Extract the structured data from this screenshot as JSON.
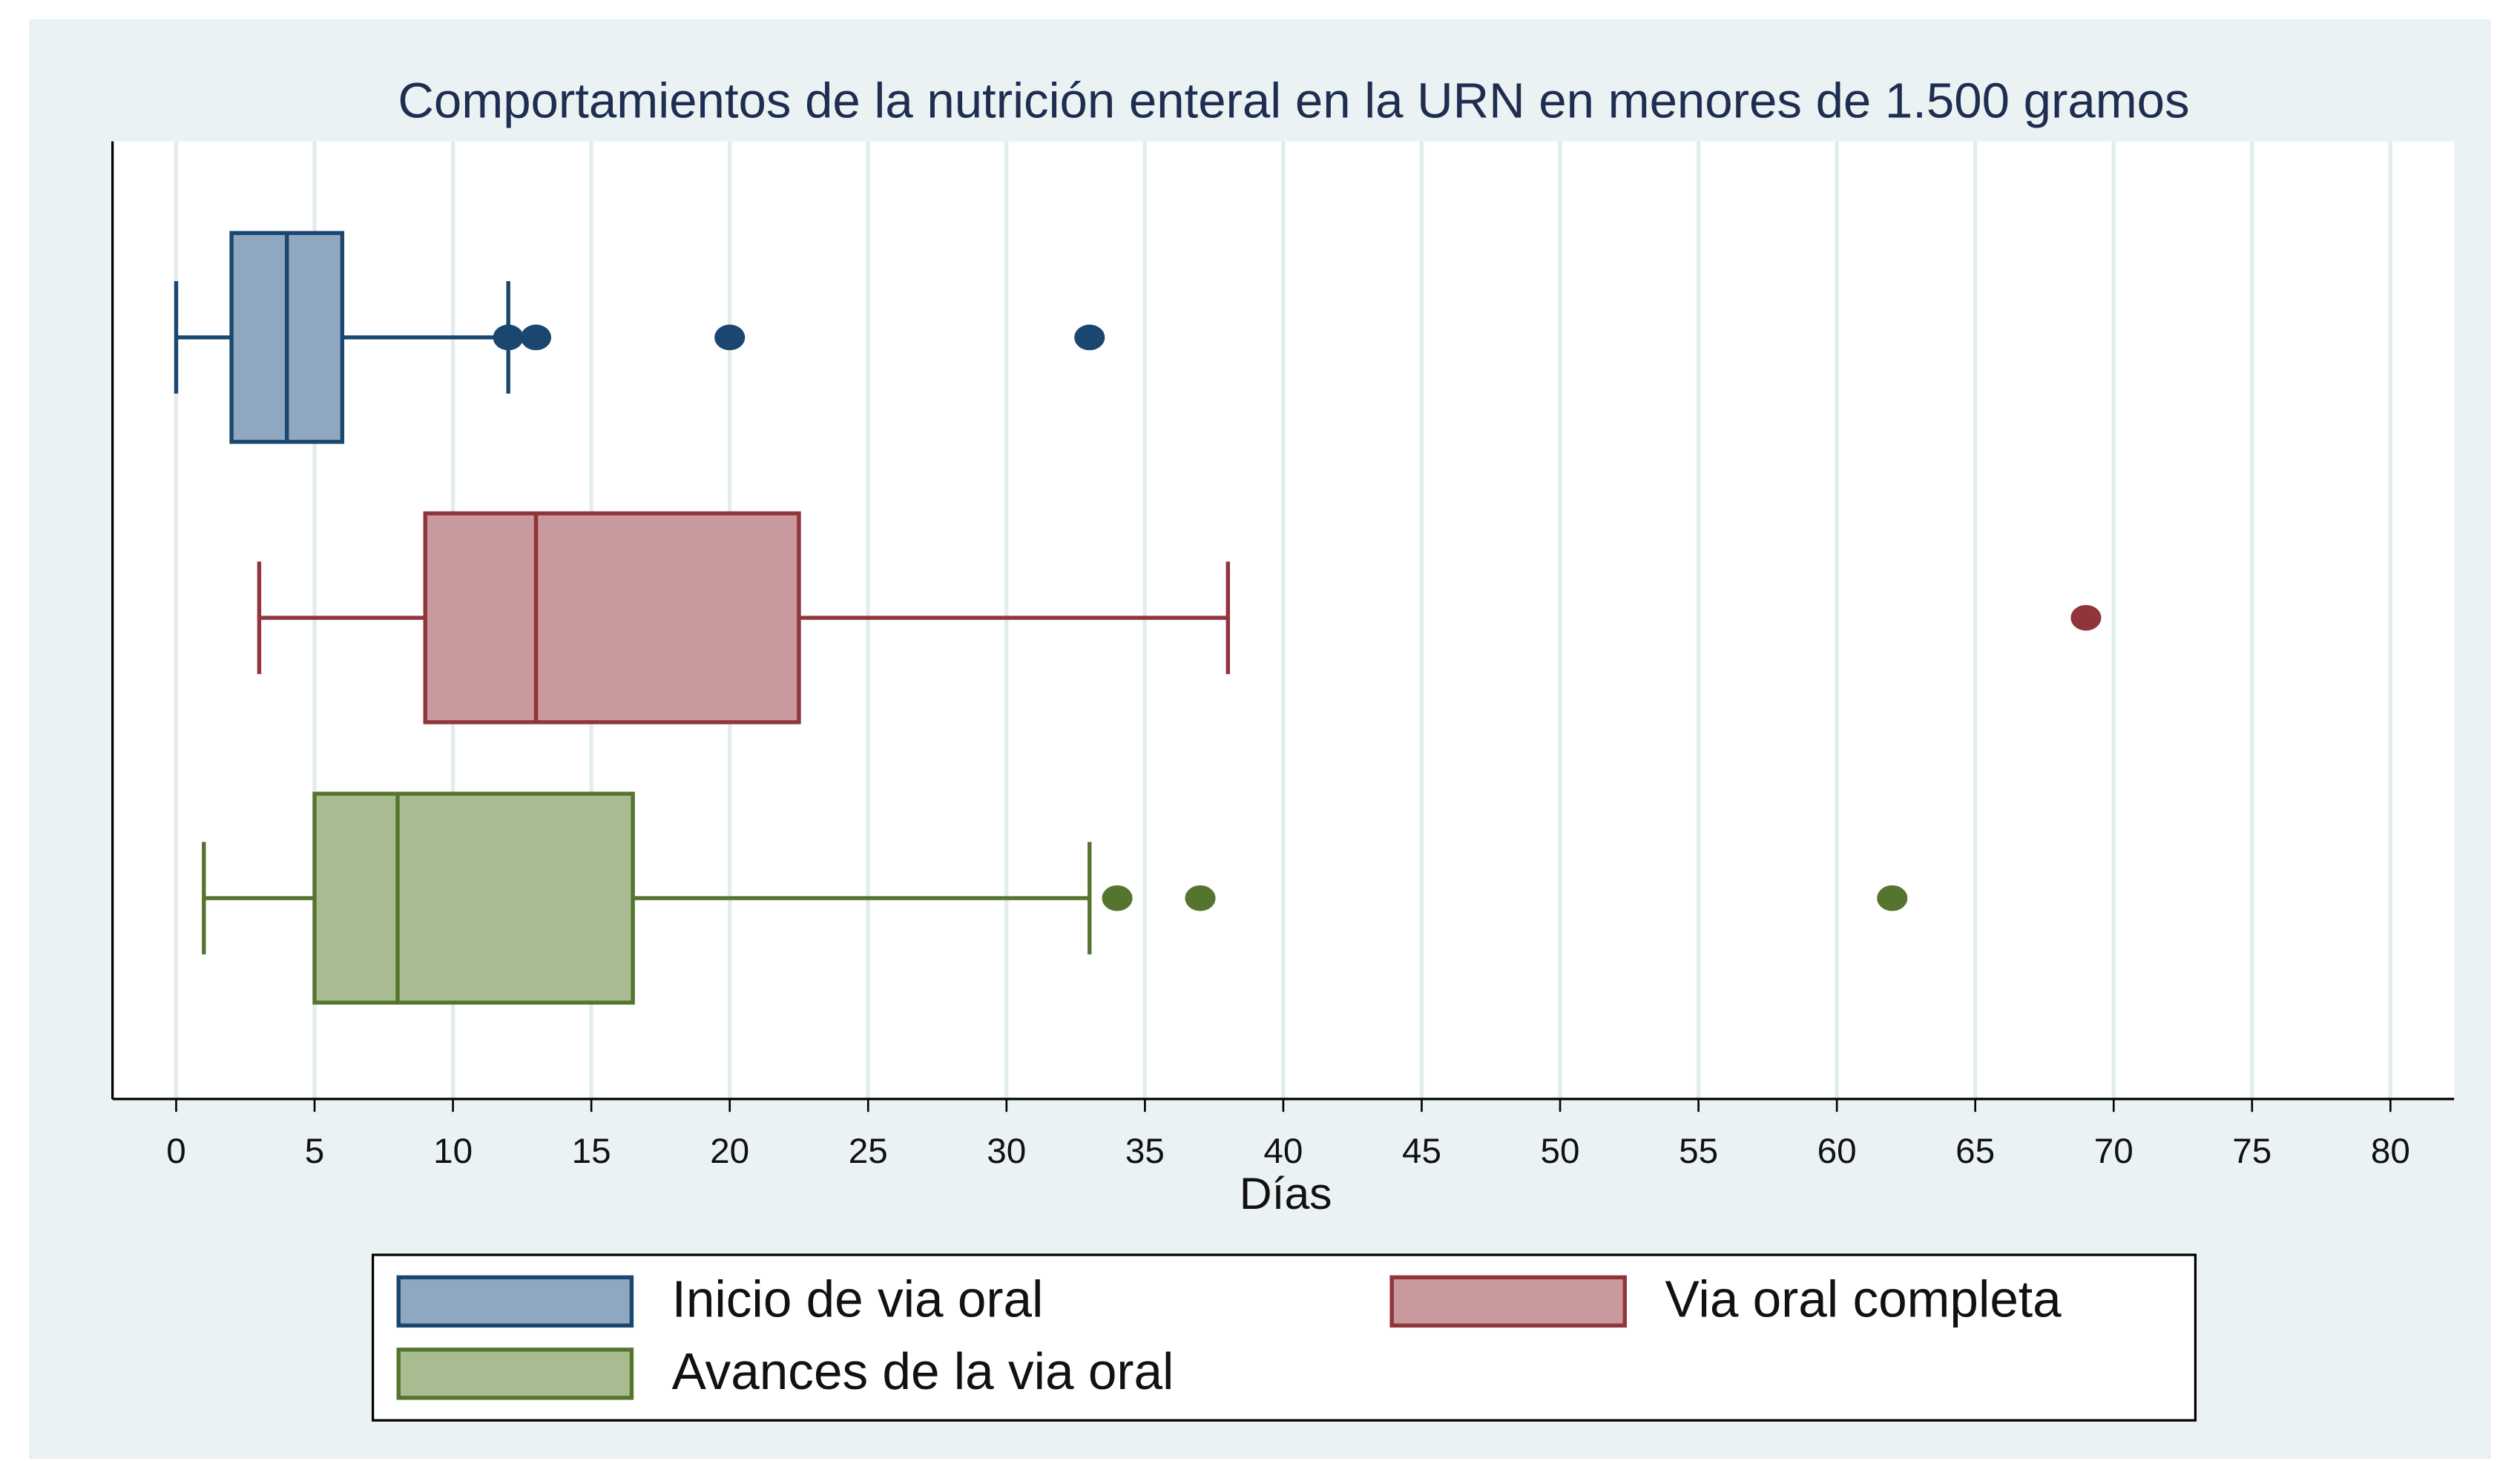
{
  "chart_data": {
    "type": "box",
    "title": "Comportamientos de la nutrición enteral en la URN en menores de 1.500 gramos",
    "x_label": "Días",
    "xlim": [
      -2.3,
      82.3
    ],
    "xticks": [
      0,
      5,
      10,
      15,
      20,
      25,
      30,
      35,
      40,
      45,
      50,
      55,
      60,
      65,
      70,
      75,
      80
    ],
    "grid": true,
    "series": [
      {
        "name": "Inicio de via oral",
        "color": "#1a476f",
        "fill": "#8fa8c0",
        "min": 0,
        "q1": 2,
        "median": 4,
        "q3": 6,
        "max": 12,
        "outliers": [
          12,
          13,
          20,
          33
        ]
      },
      {
        "name": "Via oral completa",
        "color": "#90353b",
        "fill": "#c9999d",
        "min": 3,
        "q1": 9,
        "median": 13,
        "q3": 22.5,
        "max": 38,
        "outliers": [
          69
        ]
      },
      {
        "name": "Avances de la via oral",
        "color": "#55752f",
        "fill": "#a9bb90",
        "min": 1,
        "q1": 5,
        "median": 8,
        "q3": 16.5,
        "max": 33,
        "outliers": [
          34,
          37,
          62
        ]
      }
    ]
  }
}
